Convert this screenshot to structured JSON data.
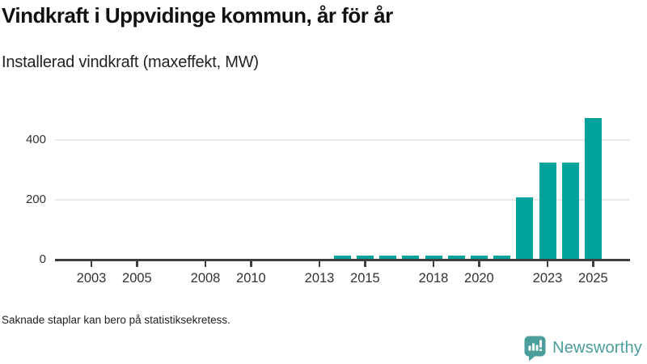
{
  "chart": {
    "title": "Vindkraft i Uppvidinge kommun, år för år",
    "subtitle": "Installerad vindkraft (maxeffekt, MW)"
  },
  "chart_data": {
    "type": "bar",
    "x": [
      2002,
      2003,
      2004,
      2005,
      2006,
      2007,
      2008,
      2009,
      2010,
      2011,
      2012,
      2013,
      2014,
      2015,
      2016,
      2017,
      2018,
      2019,
      2020,
      2021,
      2022,
      2023,
      2024,
      2025
    ],
    "values": [
      null,
      null,
      null,
      null,
      null,
      null,
      null,
      null,
      null,
      null,
      null,
      null,
      14,
      14,
      14,
      14,
      14,
      14,
      14,
      14,
      207,
      325,
      325,
      473
    ],
    "title": "Vindkraft i Uppvidinge kommun, år för år",
    "subtitle": "Installerad vindkraft (maxeffekt, MW)",
    "xlabel": "",
    "ylabel": "",
    "xticks": [
      2003,
      2005,
      2008,
      2010,
      2013,
      2015,
      2018,
      2020,
      2023,
      2025
    ],
    "yticks": [
      0,
      200,
      400
    ],
    "ylim": [
      0,
      490
    ],
    "xlim": [
      2001.4,
      2026.6
    ],
    "grid": "horizontal",
    "legend": "none",
    "note_on_missing_bars": "bars missing for 2002–2013"
  },
  "footer": {
    "note": "Saknade staplar kan bero på statistiksekretess.",
    "brand": "Newsworthy"
  },
  "colors": {
    "bar": "#00a39b",
    "axis": "#3d3d3d",
    "gridline": "#e8e8e8",
    "logo": "#4a9e9c",
    "title_text": "#111111",
    "label_text": "#333333"
  }
}
